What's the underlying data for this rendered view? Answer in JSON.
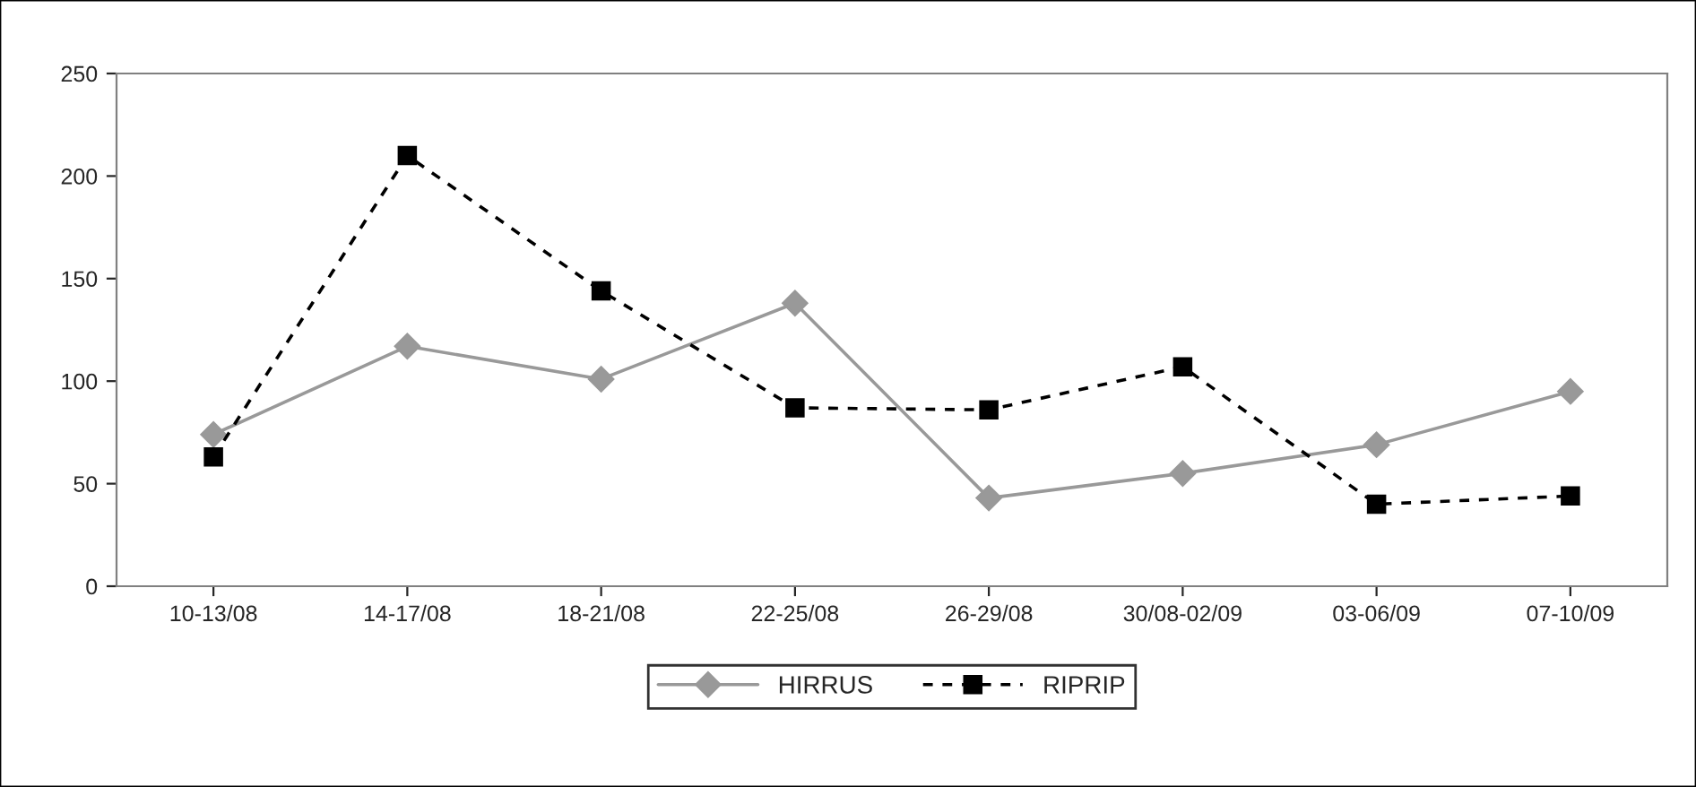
{
  "chart_data": {
    "type": "line",
    "categories": [
      "10-13/08",
      "14-17/08",
      "18-21/08",
      "22-25/08",
      "26-29/08",
      "30/08-02/09",
      "03-06/09",
      "07-10/09"
    ],
    "series": [
      {
        "name": "HIRRUS",
        "color": "#999999",
        "marker": "diamond",
        "line_style": "solid",
        "values": [
          74,
          117,
          101,
          138,
          43,
          55,
          69,
          95
        ]
      },
      {
        "name": "RIPRIP",
        "color": "#000000",
        "marker": "square",
        "line_style": "dashed",
        "values": [
          63,
          210,
          144,
          87,
          86,
          107,
          40,
          44
        ]
      }
    ],
    "ylim": [
      0,
      250
    ],
    "yticks": [
      0,
      50,
      100,
      150,
      200,
      250
    ],
    "grid": false,
    "legend": "bottom"
  }
}
